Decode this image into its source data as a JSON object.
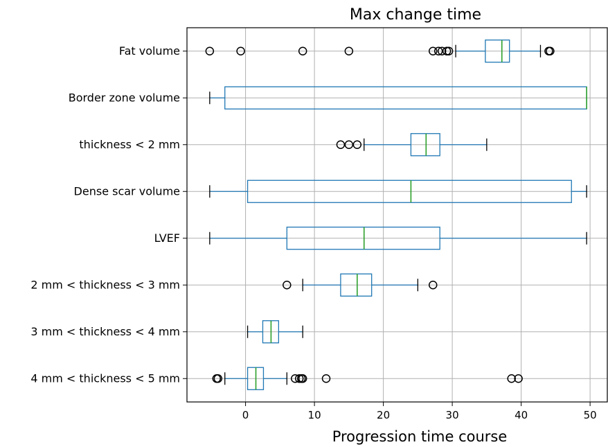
{
  "chart_data": {
    "type": "boxplot",
    "orientation": "horizontal",
    "title": "Max change time",
    "xlabel": "Progression time course",
    "ylabel": "",
    "xlim": [
      -8.5,
      52.5
    ],
    "xticks": [
      0,
      10,
      20,
      30,
      40,
      50
    ],
    "grid": true,
    "colors": {
      "box": "#1f77b4",
      "median": "#2ca02c",
      "whisker": "#1f77b4",
      "cap": "#000000",
      "flier": "#000000",
      "grid": "#b0b0b0"
    },
    "categories": [
      "Fat volume",
      "Border zone volume",
      "thickness < 2 mm",
      "Dense scar volume",
      "LVEF ",
      "2 mm < thickness < 3 mm",
      "3 mm < thickness < 4 mm",
      "4 mm < thickness < 5 mm"
    ],
    "boxes": [
      {
        "label": "Fat volume",
        "whislo": 30.5,
        "q1": 34.8,
        "med": 37.2,
        "q3": 38.3,
        "whishi": 42.8,
        "fliers": [
          -5.2,
          -0.7,
          8.3,
          15.0,
          27.2,
          28.0,
          28.5,
          29.2,
          29.5,
          44.0,
          44.2
        ]
      },
      {
        "label": "Border zone volume",
        "whislo": -5.2,
        "q1": -3.0,
        "med": 49.5,
        "q3": 49.5,
        "whishi": 49.5,
        "fliers": []
      },
      {
        "label": "thickness < 2 mm",
        "whislo": 17.2,
        "q1": 24.0,
        "med": 26.2,
        "q3": 28.2,
        "whishi": 35.0,
        "fliers": [
          13.8,
          15.0,
          16.2
        ]
      },
      {
        "label": "Dense scar volume",
        "whislo": -5.2,
        "q1": 0.3,
        "med": 24.0,
        "q3": 47.3,
        "whishi": 49.5,
        "fliers": []
      },
      {
        "label": "LVEF ",
        "whislo": -5.2,
        "q1": 6.0,
        "med": 17.2,
        "q3": 28.2,
        "whishi": 49.5,
        "fliers": []
      },
      {
        "label": "2 mm < thickness < 3 mm",
        "whislo": 8.3,
        "q1": 13.8,
        "med": 16.2,
        "q3": 18.3,
        "whishi": 25.0,
        "fliers": [
          6.0,
          27.2
        ]
      },
      {
        "label": "3 mm < thickness < 4 mm",
        "whislo": 0.3,
        "q1": 2.5,
        "med": 3.7,
        "q3": 4.8,
        "whishi": 8.3,
        "fliers": []
      },
      {
        "label": "4 mm < thickness < 5 mm",
        "whislo": -3.0,
        "q1": 0.3,
        "med": 1.5,
        "q3": 2.6,
        "whishi": 6.0,
        "fliers": [
          -4.2,
          -4.0,
          7.2,
          7.8,
          8.1,
          8.3,
          11.7,
          38.6,
          39.6
        ]
      }
    ]
  }
}
